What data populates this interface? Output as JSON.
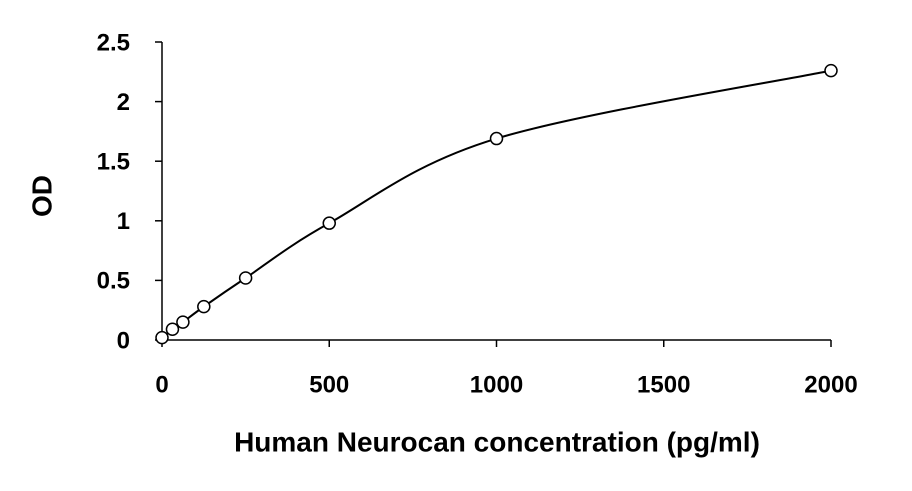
{
  "chart_data": {
    "type": "scatter",
    "x_label": "Human Neurocan concentration (pg/ml)",
    "y_label": "OD",
    "x": [
      0,
      31.25,
      62.5,
      125,
      250,
      500,
      1000,
      2000
    ],
    "series": [
      {
        "color": "#000000",
        "values": [
          0.02,
          0.09,
          0.15,
          0.28,
          0.52,
          0.98,
          1.69,
          2.26
        ]
      }
    ],
    "xlim": [
      0,
      2000
    ],
    "xticks": [
      0,
      500,
      1000,
      1500,
      2000
    ],
    "ylim": [
      0,
      2.5
    ],
    "yticks": [
      0,
      0.5,
      1,
      1.5,
      2,
      2.5
    ],
    "grid": false,
    "fit_line": true
  }
}
